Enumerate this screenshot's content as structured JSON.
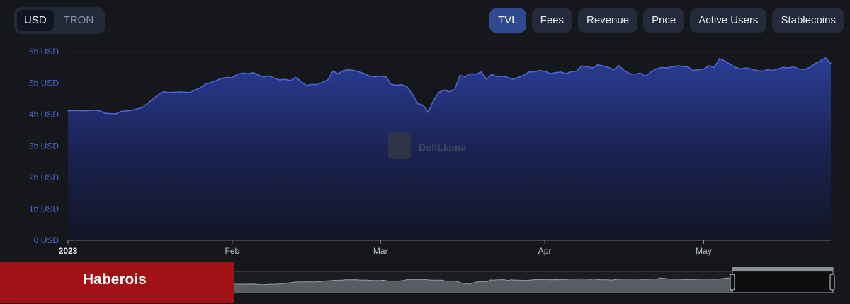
{
  "currency_toggle": {
    "options": [
      {
        "label": "USD",
        "active": true
      },
      {
        "label": "TRON",
        "active": false
      }
    ]
  },
  "metric_tabs": [
    {
      "label": "TVL",
      "active": true
    },
    {
      "label": "Fees",
      "active": false
    },
    {
      "label": "Revenue",
      "active": false
    },
    {
      "label": "Price",
      "active": false
    },
    {
      "label": "Active Users",
      "active": false
    },
    {
      "label": "Stablecoins",
      "active": false
    }
  ],
  "watermark": "DefiLlama",
  "overlay": {
    "label": "Haberois"
  },
  "colors": {
    "line": "#4a66d8",
    "background": "#16171a",
    "area_top": "#2b3f9c"
  },
  "chart_data": {
    "type": "area",
    "title": "",
    "xlabel": "",
    "ylabel": "",
    "ylim": [
      0,
      6
    ],
    "y_ticks": [
      {
        "value": 0,
        "label": "0 USD"
      },
      {
        "value": 1,
        "label": "1b USD"
      },
      {
        "value": 2,
        "label": "2b USD"
      },
      {
        "value": 3,
        "label": "3b USD"
      },
      {
        "value": 4,
        "label": "4b USD"
      },
      {
        "value": 5,
        "label": "5b USD"
      },
      {
        "value": 6,
        "label": "6b USD"
      }
    ],
    "x_ticks": [
      {
        "date": "2023-01-01",
        "label": "2023",
        "bold": true
      },
      {
        "date": "2023-02-01",
        "label": "Feb",
        "bold": false
      },
      {
        "date": "2023-03-01",
        "label": "Mar",
        "bold": false
      },
      {
        "date": "2023-04-01",
        "label": "Apr",
        "bold": false
      },
      {
        "date": "2023-05-01",
        "label": "May",
        "bold": false
      }
    ],
    "grid": true,
    "series": [
      {
        "values_unit": "billion USD",
        "points": [
          [
            "2023-01-01",
            4.12
          ],
          [
            "2023-01-03",
            4.13
          ],
          [
            "2023-01-04",
            4.12
          ],
          [
            "2023-01-06",
            4.14
          ],
          [
            "2023-01-07",
            4.12
          ],
          [
            "2023-01-08",
            4.04
          ],
          [
            "2023-01-10",
            4.02
          ],
          [
            "2023-01-11",
            4.1
          ],
          [
            "2023-01-13",
            4.13
          ],
          [
            "2023-01-15",
            4.22
          ],
          [
            "2023-01-16",
            4.35
          ],
          [
            "2023-01-18",
            4.62
          ],
          [
            "2023-01-19",
            4.72
          ],
          [
            "2023-01-20",
            4.7
          ],
          [
            "2023-01-22",
            4.72
          ],
          [
            "2023-01-24",
            4.7
          ],
          [
            "2023-01-25",
            4.78
          ],
          [
            "2023-01-26",
            4.85
          ],
          [
            "2023-01-27",
            4.97
          ],
          [
            "2023-01-28",
            5.02
          ],
          [
            "2023-01-29",
            5.08
          ],
          [
            "2023-01-30",
            5.15
          ],
          [
            "2023-01-31",
            5.18
          ],
          [
            "2023-02-01",
            5.17
          ],
          [
            "2023-02-02",
            5.28
          ],
          [
            "2023-02-03",
            5.32
          ],
          [
            "2023-02-04",
            5.3
          ],
          [
            "2023-02-05",
            5.33
          ],
          [
            "2023-02-06",
            5.25
          ],
          [
            "2023-02-07",
            5.2
          ],
          [
            "2023-02-08",
            5.23
          ],
          [
            "2023-02-09",
            5.15
          ],
          [
            "2023-02-10",
            5.1
          ],
          [
            "2023-02-11",
            5.12
          ],
          [
            "2023-02-12",
            5.08
          ],
          [
            "2023-02-13",
            5.18
          ],
          [
            "2023-02-14",
            5.05
          ],
          [
            "2023-02-15",
            4.92
          ],
          [
            "2023-02-16",
            4.96
          ],
          [
            "2023-02-17",
            4.95
          ],
          [
            "2023-02-18",
            5.02
          ],
          [
            "2023-02-19",
            5.1
          ],
          [
            "2023-02-20",
            5.38
          ],
          [
            "2023-02-21",
            5.3
          ],
          [
            "2023-02-22",
            5.4
          ],
          [
            "2023-02-23",
            5.42
          ],
          [
            "2023-02-24",
            5.4
          ],
          [
            "2023-02-25",
            5.35
          ],
          [
            "2023-02-26",
            5.3
          ],
          [
            "2023-02-27",
            5.22
          ],
          [
            "2023-02-28",
            5.2
          ],
          [
            "2023-03-01",
            5.22
          ],
          [
            "2023-03-02",
            5.2
          ],
          [
            "2023-03-03",
            4.96
          ],
          [
            "2023-03-04",
            4.93
          ],
          [
            "2023-03-05",
            4.95
          ],
          [
            "2023-03-06",
            4.88
          ],
          [
            "2023-03-07",
            4.65
          ],
          [
            "2023-03-08",
            4.35
          ],
          [
            "2023-03-09",
            4.3
          ],
          [
            "2023-03-10",
            4.08
          ],
          [
            "2023-03-11",
            4.45
          ],
          [
            "2023-03-12",
            4.7
          ],
          [
            "2023-03-13",
            4.78
          ],
          [
            "2023-03-14",
            4.72
          ],
          [
            "2023-03-15",
            4.8
          ],
          [
            "2023-03-16",
            5.25
          ],
          [
            "2023-03-17",
            5.2
          ],
          [
            "2023-03-18",
            5.3
          ],
          [
            "2023-03-19",
            5.28
          ],
          [
            "2023-03-20",
            5.35
          ],
          [
            "2023-03-21",
            5.12
          ],
          [
            "2023-03-22",
            5.28
          ],
          [
            "2023-03-23",
            5.2
          ],
          [
            "2023-03-24",
            5.22
          ],
          [
            "2023-03-25",
            5.18
          ],
          [
            "2023-03-26",
            5.12
          ],
          [
            "2023-03-27",
            5.18
          ],
          [
            "2023-03-28",
            5.25
          ],
          [
            "2023-03-29",
            5.35
          ],
          [
            "2023-03-30",
            5.36
          ],
          [
            "2023-03-31",
            5.4
          ],
          [
            "2023-04-01",
            5.38
          ],
          [
            "2023-04-02",
            5.3
          ],
          [
            "2023-04-03",
            5.33
          ],
          [
            "2023-04-04",
            5.35
          ],
          [
            "2023-04-05",
            5.3
          ],
          [
            "2023-04-06",
            5.36
          ],
          [
            "2023-04-07",
            5.38
          ],
          [
            "2023-04-08",
            5.55
          ],
          [
            "2023-04-09",
            5.52
          ],
          [
            "2023-04-10",
            5.48
          ],
          [
            "2023-04-11",
            5.58
          ],
          [
            "2023-04-12",
            5.55
          ],
          [
            "2023-04-13",
            5.5
          ],
          [
            "2023-04-14",
            5.42
          ],
          [
            "2023-04-15",
            5.55
          ],
          [
            "2023-04-16",
            5.4
          ],
          [
            "2023-04-17",
            5.3
          ],
          [
            "2023-04-18",
            5.28
          ],
          [
            "2023-04-19",
            5.32
          ],
          [
            "2023-04-20",
            5.22
          ],
          [
            "2023-04-21",
            5.35
          ],
          [
            "2023-04-22",
            5.45
          ],
          [
            "2023-04-23",
            5.5
          ],
          [
            "2023-04-24",
            5.48
          ],
          [
            "2023-04-25",
            5.52
          ],
          [
            "2023-04-26",
            5.55
          ],
          [
            "2023-04-27",
            5.53
          ],
          [
            "2023-04-28",
            5.52
          ],
          [
            "2023-04-29",
            5.4
          ],
          [
            "2023-04-30",
            5.42
          ],
          [
            "2023-05-01",
            5.45
          ],
          [
            "2023-05-02",
            5.55
          ],
          [
            "2023-05-03",
            5.5
          ],
          [
            "2023-05-04",
            5.78
          ],
          [
            "2023-05-05",
            5.7
          ],
          [
            "2023-05-06",
            5.6
          ],
          [
            "2023-05-07",
            5.5
          ],
          [
            "2023-05-08",
            5.45
          ],
          [
            "2023-05-09",
            5.48
          ],
          [
            "2023-05-10",
            5.45
          ],
          [
            "2023-05-11",
            5.4
          ],
          [
            "2023-05-12",
            5.38
          ],
          [
            "2023-05-13",
            5.42
          ],
          [
            "2023-05-14",
            5.4
          ],
          [
            "2023-05-15",
            5.45
          ],
          [
            "2023-05-16",
            5.5
          ],
          [
            "2023-05-17",
            5.48
          ],
          [
            "2023-05-18",
            5.52
          ],
          [
            "2023-05-19",
            5.45
          ],
          [
            "2023-05-20",
            5.43
          ],
          [
            "2023-05-21",
            5.5
          ],
          [
            "2023-05-22",
            5.62
          ],
          [
            "2023-05-23",
            5.7
          ],
          [
            "2023-05-24",
            5.8
          ],
          [
            "2023-05-25",
            5.62
          ]
        ]
      }
    ]
  }
}
